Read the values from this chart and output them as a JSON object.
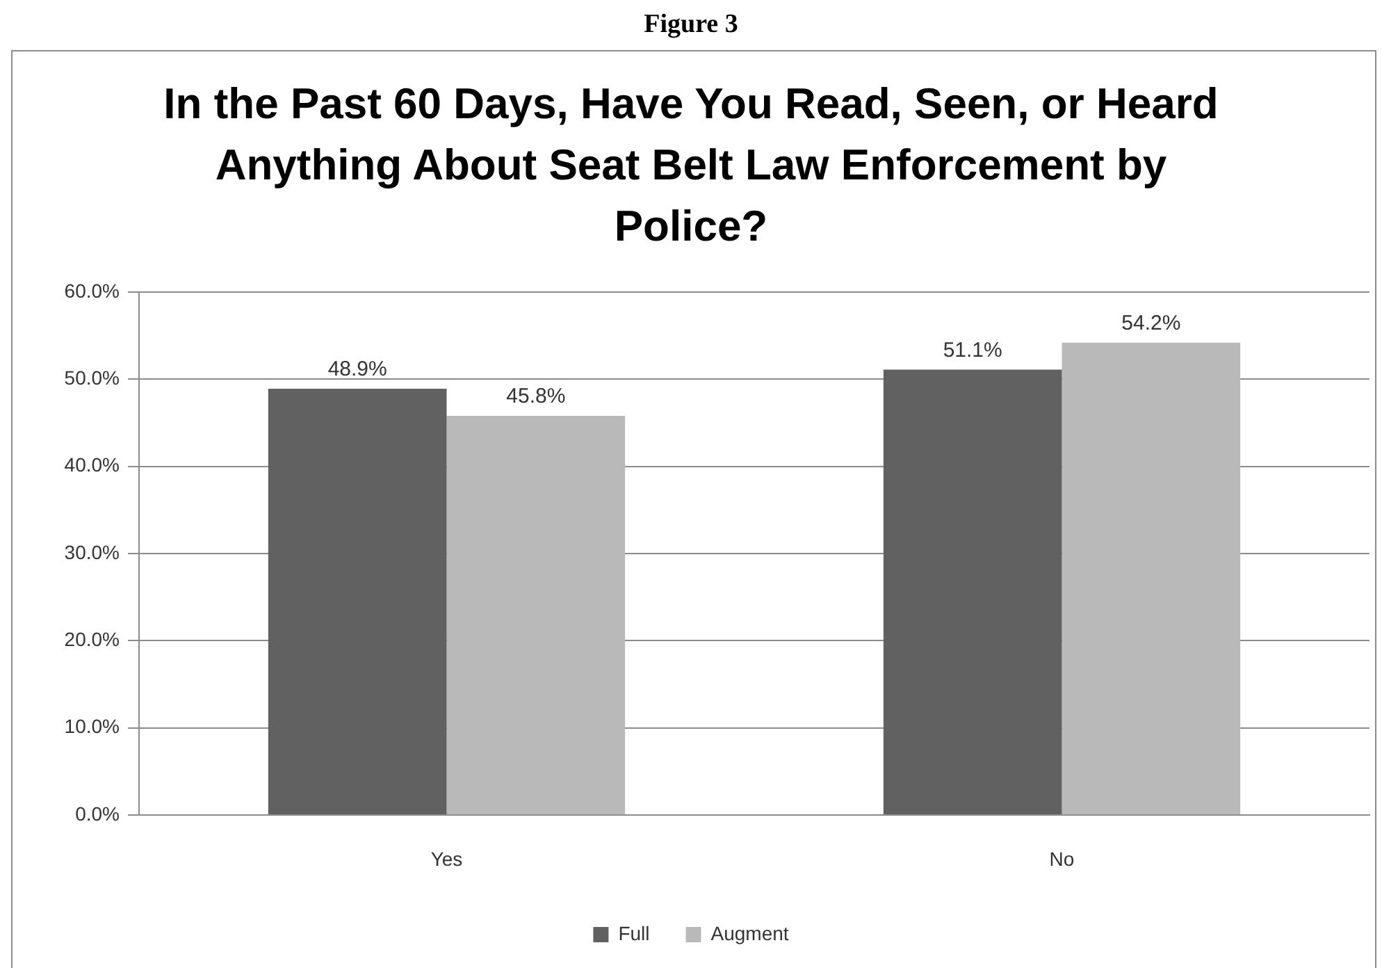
{
  "chart_data": {
    "type": "bar",
    "title": "In the Past 60 Days, Have You Read, Seen, or Heard Anything About Seat Belt Law Enforcement by Police?",
    "annotations": [
      "Figure 3"
    ],
    "categories": [
      "Yes",
      "No"
    ],
    "series": [
      {
        "name": "Full",
        "color": "#616161",
        "values": [
          48.9,
          51.1
        ],
        "value_labels": [
          "48.9%",
          "51.1%"
        ]
      },
      {
        "name": "Augment",
        "color": "#b9b9b9",
        "values": [
          45.8,
          54.2
        ],
        "value_labels": [
          "45.8%",
          "54.2%"
        ]
      }
    ],
    "ylim": [
      0,
      60
    ],
    "yticks": [
      {
        "value": 0,
        "label": "0.0%"
      },
      {
        "value": 10,
        "label": "10.0%"
      },
      {
        "value": 20,
        "label": "20.0%"
      },
      {
        "value": 30,
        "label": "30.0%"
      },
      {
        "value": 40,
        "label": "40.0%"
      },
      {
        "value": 50,
        "label": "50.0%"
      },
      {
        "value": 60,
        "label": "60.0%"
      }
    ],
    "grid": "y",
    "legend": "bottom"
  }
}
